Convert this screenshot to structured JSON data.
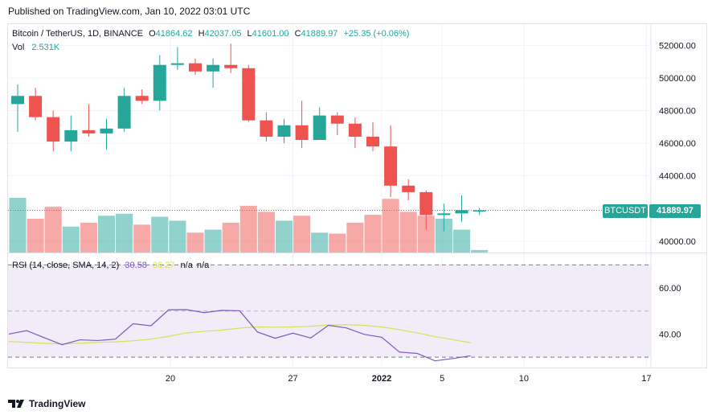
{
  "header": {
    "published": "Published on TradingView.com, Jan 10, 2022 03:01 UTC"
  },
  "legend": {
    "symbol": "Bitcoin / TetherUS, 1D, BINANCE",
    "o_label": "O",
    "o_value": "41864.62",
    "h_label": "H",
    "h_value": "42037.05",
    "l_label": "L",
    "l_value": "41601.00",
    "c_label": "C",
    "c_value": "41889.97",
    "change": "+25.35 (+0.06%)",
    "vol_label": "Vol",
    "vol_value": "2.531K"
  },
  "rsi_legend": {
    "label": "RSI (14, close, SMA, 14, 2)",
    "rsi": "30.58",
    "sma": "36.27",
    "na1": "n/a",
    "na2": "n/a"
  },
  "badges": {
    "ticker": "BTCUSDT",
    "price": "41889.97"
  },
  "branding": {
    "name": "TradingView"
  },
  "colors": {
    "up": "#26a69a",
    "down": "#ef5350",
    "rsi": "#7e57c2",
    "sma": "#d4e157",
    "rsi_band": "#ede7f6"
  },
  "chart_data": [
    {
      "type": "candlestick",
      "price_ticks": [
        "52000.00",
        "50000.00",
        "48000.00",
        "46000.00",
        "44000.00",
        "40000.00"
      ],
      "ylim": [
        39300,
        53300
      ],
      "x_tick_labels": [
        "20",
        "27",
        "2022",
        "5",
        "10",
        "17"
      ],
      "last_price": 41889.97,
      "candles": [
        {
          "o": 48400,
          "h": 49600,
          "l": 46700,
          "c": 48900
        },
        {
          "o": 48900,
          "h": 49400,
          "l": 47400,
          "c": 47600
        },
        {
          "o": 47600,
          "h": 48000,
          "l": 45500,
          "c": 46100
        },
        {
          "o": 46100,
          "h": 47700,
          "l": 45500,
          "c": 46800
        },
        {
          "o": 46800,
          "h": 48400,
          "l": 46400,
          "c": 46600
        },
        {
          "o": 46600,
          "h": 47500,
          "l": 45600,
          "c": 46900
        },
        {
          "o": 46900,
          "h": 49400,
          "l": 46700,
          "c": 48900
        },
        {
          "o": 48900,
          "h": 49300,
          "l": 48400,
          "c": 48600
        },
        {
          "o": 48600,
          "h": 51400,
          "l": 48000,
          "c": 50800
        },
        {
          "o": 50800,
          "h": 51900,
          "l": 50500,
          "c": 50900
        },
        {
          "o": 50900,
          "h": 51200,
          "l": 50200,
          "c": 50400
        },
        {
          "o": 50400,
          "h": 51200,
          "l": 49400,
          "c": 50800
        },
        {
          "o": 50800,
          "h": 52100,
          "l": 50300,
          "c": 50600
        },
        {
          "o": 50600,
          "h": 50800,
          "l": 47300,
          "c": 47400
        },
        {
          "o": 47400,
          "h": 47900,
          "l": 46100,
          "c": 46400
        },
        {
          "o": 46400,
          "h": 47500,
          "l": 46000,
          "c": 47100
        },
        {
          "o": 47100,
          "h": 48600,
          "l": 45700,
          "c": 46200
        },
        {
          "o": 46200,
          "h": 48200,
          "l": 46200,
          "c": 47700
        },
        {
          "o": 47700,
          "h": 47900,
          "l": 46500,
          "c": 47200
        },
        {
          "o": 47200,
          "h": 47600,
          "l": 45700,
          "c": 46400
        },
        {
          "o": 46400,
          "h": 47300,
          "l": 45500,
          "c": 45800
        },
        {
          "o": 45800,
          "h": 47100,
          "l": 42700,
          "c": 43400
        },
        {
          "o": 43400,
          "h": 43800,
          "l": 42500,
          "c": 43000
        },
        {
          "o": 43000,
          "h": 43100,
          "l": 40700,
          "c": 41600
        },
        {
          "o": 41600,
          "h": 42300,
          "l": 40600,
          "c": 41700
        },
        {
          "o": 41700,
          "h": 42800,
          "l": 41200,
          "c": 41900
        },
        {
          "o": 41864.62,
          "h": 42037.05,
          "l": 41601.0,
          "c": 41889.97
        }
      ],
      "volume": [
        55,
        34,
        46,
        26,
        30,
        37,
        39,
        28,
        36,
        32,
        20,
        23,
        30,
        47,
        41,
        32,
        37,
        20,
        19,
        30,
        38,
        54,
        41,
        37,
        34,
        23,
        2.531
      ]
    },
    {
      "type": "line",
      "name": "RSI",
      "ylim": [
        25.5,
        75
      ],
      "y_ticks": [
        "60.00",
        "40.00"
      ],
      "band": [
        30,
        70
      ],
      "midline": 50,
      "rsi": [
        40,
        41.5,
        38.4,
        35.4,
        37.5,
        37.2,
        37.8,
        44.5,
        43.6,
        50.5,
        50.6,
        49.3,
        50.3,
        50.1,
        40.9,
        38.2,
        40.4,
        38.3,
        43.8,
        42.7,
        39.9,
        38.6,
        32.2,
        31.6,
        28.4,
        29.4,
        30.58
      ],
      "sma": [
        36.8,
        36.4,
        36,
        35.7,
        36,
        36.4,
        36.6,
        37.1,
        37.8,
        39,
        40.5,
        41.2,
        41.7,
        42.6,
        43.1,
        43,
        43.1,
        43.4,
        43.9,
        44.1,
        43.8,
        43.1,
        41.9,
        40.5,
        38.9,
        37.6,
        36.27
      ]
    }
  ]
}
